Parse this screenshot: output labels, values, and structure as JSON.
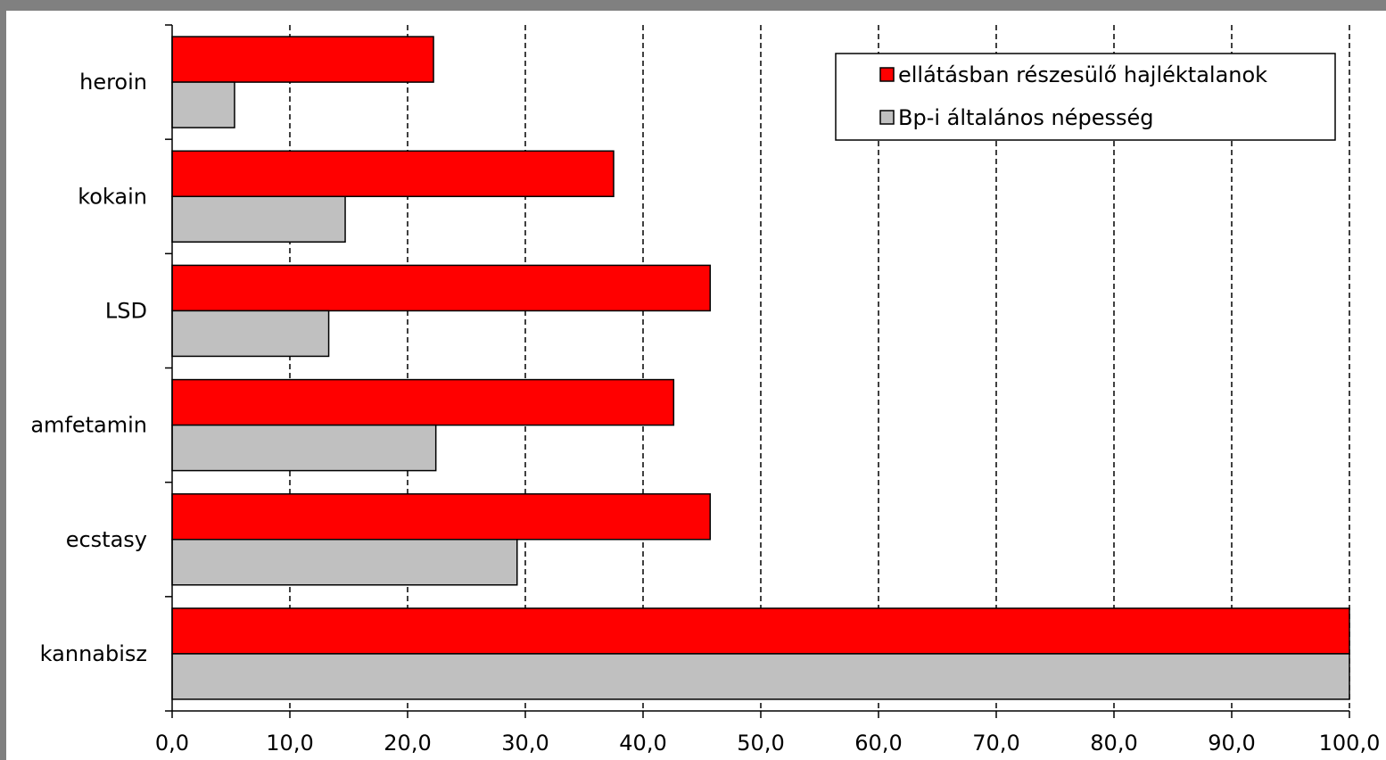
{
  "chart_data": {
    "type": "bar",
    "orientation": "horizontal",
    "categories": [
      "heroin",
      "kokain",
      "LSD",
      "amfetamin",
      "ecstasy",
      "kannabisz"
    ],
    "series": [
      {
        "name": "ellátásban részesülő hajléktalanok",
        "color": "#ff0000",
        "values": [
          22.2,
          37.5,
          45.7,
          42.6,
          45.7,
          100.0
        ]
      },
      {
        "name": "Bp-i általános népesség",
        "color": "#c0c0c0",
        "values": [
          5.3,
          14.7,
          13.3,
          22.4,
          29.3,
          100.0
        ]
      }
    ],
    "xlim": [
      0,
      100
    ],
    "xticks": [
      "0,0",
      "10,0",
      "20,0",
      "30,0",
      "40,0",
      "50,0",
      "60,0",
      "70,0",
      "80,0",
      "90,0",
      "100,0"
    ],
    "grid": "vertical dashed",
    "legend": "top-right",
    "title": "",
    "xlabel": "",
    "ylabel": ""
  }
}
